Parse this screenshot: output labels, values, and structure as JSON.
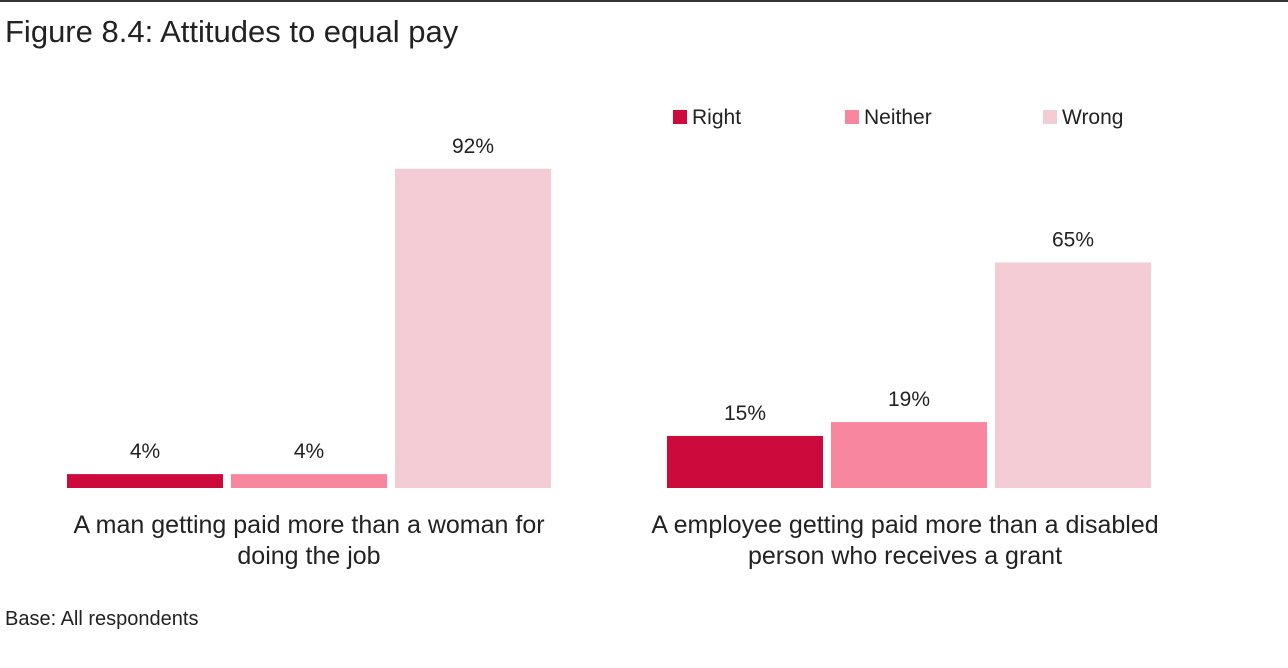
{
  "figure": {
    "title": "Figure 8.4: Attitudes to equal pay",
    "base_note": "Base: All respondents"
  },
  "chart_data": {
    "type": "bar",
    "title": "Figure 8.4: Attitudes to equal pay",
    "categories": [
      [
        "A man getting paid more than a woman for",
        "doing the job"
      ],
      [
        "A employee getting paid more than a disabled",
        "person who receives a grant"
      ]
    ],
    "series": [
      {
        "name": "Right",
        "values": [
          4,
          15
        ],
        "labels": [
          "4%",
          "15%"
        ],
        "color": "#cc0a3c"
      },
      {
        "name": "Neither",
        "values": [
          4,
          19
        ],
        "labels": [
          "4%",
          "19%"
        ],
        "color": "#f9869f"
      },
      {
        "name": "Wrong",
        "values": [
          92,
          65
        ],
        "labels": [
          "92%",
          "65%"
        ],
        "color": "#f4ccd5"
      }
    ],
    "ylim": [
      0,
      100
    ],
    "grid": false,
    "y_axis_visible": false,
    "legend_position": "top-right",
    "value_format": "percent"
  }
}
